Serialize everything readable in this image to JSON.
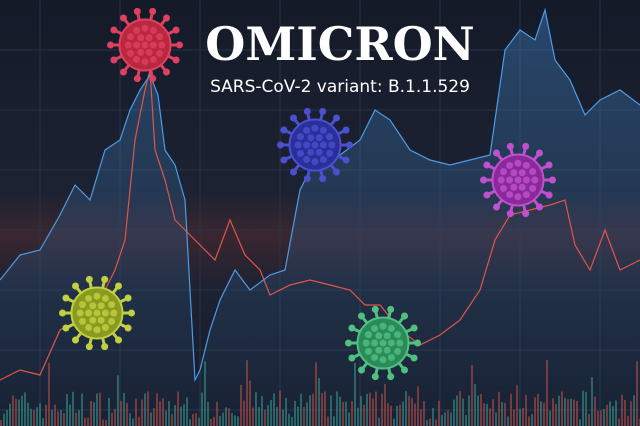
{
  "header": {
    "title": "OMICRON",
    "subtitle": "SARS-CoV-2 variant: B.1.1.529"
  }
}
